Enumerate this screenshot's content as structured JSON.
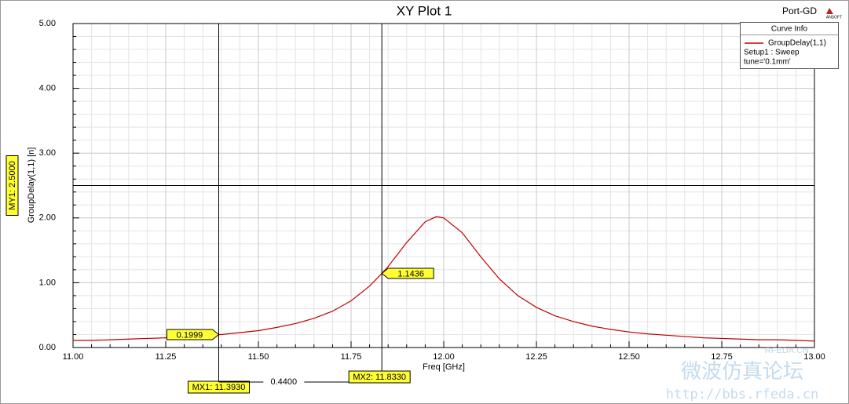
{
  "chart_data": {
    "type": "line",
    "title": "XY Plot 1",
    "plot_name": "Port-GD",
    "logo": "ANSOFT",
    "x_label": "Freq [GHz]",
    "y_label": "GroupDelay(1,1) [n]",
    "x": [
      11.0,
      11.05,
      11.1,
      11.15,
      11.2,
      11.25,
      11.3,
      11.35,
      11.393,
      11.4,
      11.45,
      11.5,
      11.55,
      11.6,
      11.65,
      11.7,
      11.75,
      11.8,
      11.833,
      11.85,
      11.9,
      11.95,
      11.98,
      12.0,
      12.05,
      12.1,
      12.15,
      12.2,
      12.25,
      12.3,
      12.35,
      12.4,
      12.45,
      12.5,
      12.55,
      12.6,
      12.65,
      12.7,
      12.75,
      12.8,
      12.85,
      12.9,
      12.95,
      13.0
    ],
    "series": [
      {
        "name": "GroupDelay(1,1)",
        "color": "#c00000",
        "values": [
          0.11,
          0.11,
          0.12,
          0.13,
          0.14,
          0.15,
          0.16,
          0.18,
          0.1999,
          0.2,
          0.23,
          0.26,
          0.31,
          0.37,
          0.45,
          0.56,
          0.72,
          0.95,
          1.1436,
          1.25,
          1.62,
          1.94,
          2.02,
          2.0,
          1.77,
          1.4,
          1.06,
          0.8,
          0.62,
          0.49,
          0.4,
          0.33,
          0.28,
          0.24,
          0.21,
          0.19,
          0.17,
          0.15,
          0.14,
          0.13,
          0.12,
          0.12,
          0.11,
          0.1
        ]
      }
    ],
    "legend_title": "Curve Info",
    "legend_notes": [
      "Setup1 : Sweep",
      "tune='0.1mm'"
    ],
    "xlim": [
      11.0,
      13.0
    ],
    "ylim": [
      0,
      5
    ],
    "xticks": [
      {
        "value": 11.0,
        "label": "11.00"
      },
      {
        "value": 11.25,
        "label": "11.25"
      },
      {
        "value": 11.5,
        "label": "11.50"
      },
      {
        "value": 11.75,
        "label": "11.75"
      },
      {
        "value": 12.0,
        "label": "12.00"
      },
      {
        "value": 12.25,
        "label": "12.25"
      },
      {
        "value": 12.5,
        "label": "12.50"
      },
      {
        "value": 12.75,
        "label": "12.75"
      },
      {
        "value": 13.0,
        "label": "13.00"
      }
    ],
    "yticks": [
      {
        "value": 0,
        "label": "0.00"
      },
      {
        "value": 1,
        "label": "1.00"
      },
      {
        "value": 2,
        "label": "2.00"
      },
      {
        "value": 3,
        "label": "3.00"
      },
      {
        "value": 4,
        "label": "4.00"
      },
      {
        "value": 5,
        "label": "5.00"
      }
    ],
    "grid": true,
    "x_markers": [
      {
        "value": 11.393,
        "label": "MX1: 11.3930"
      },
      {
        "value": 11.833,
        "label": "MX2: 11.8330"
      }
    ],
    "x_marker_delta": {
      "value": 0.44,
      "label": "0.4400"
    },
    "y_markers": [
      {
        "value": 2.5,
        "label": "MY1: 2.5000"
      }
    ],
    "point_markers": [
      {
        "x": 11.393,
        "y": 0.1999,
        "label": "0.1999"
      },
      {
        "x": 11.833,
        "y": 1.1436,
        "label": "1.1436"
      }
    ],
    "watermark": [
      "RFEDA.CN",
      "微波仿真论坛",
      "http://bbs.rfeda.cn"
    ]
  }
}
